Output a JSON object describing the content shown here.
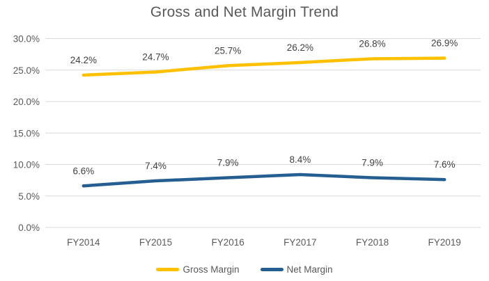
{
  "chart_data": {
    "type": "line",
    "title": "Gross and Net Margin Trend",
    "categories": [
      "FY2014",
      "FY2015",
      "FY2016",
      "FY2017",
      "FY2018",
      "FY2019"
    ],
    "series": [
      {
        "name": "Gross Margin",
        "color": "#FFC000",
        "values": [
          24.2,
          24.7,
          25.7,
          26.2,
          26.8,
          26.9
        ],
        "labels": [
          "24.2%",
          "24.7%",
          "25.7%",
          "26.2%",
          "26.8%",
          "26.9%"
        ]
      },
      {
        "name": "Net Margin",
        "color": "#255E91",
        "values": [
          6.6,
          7.4,
          7.9,
          8.4,
          7.9,
          7.6
        ],
        "labels": [
          "6.6%",
          "7.4%",
          "7.9%",
          "8.4%",
          "7.9%",
          "7.6%"
        ]
      }
    ],
    "y_axis": {
      "min": 0,
      "max": 30,
      "step": 5,
      "tick_labels": [
        "0.0%",
        "5.0%",
        "10.0%",
        "15.0%",
        "20.0%",
        "25.0%",
        "30.0%"
      ]
    },
    "x_axis": {
      "label": ""
    },
    "grid": true,
    "legend_position": "bottom",
    "colors": {
      "grid": "#D9D9D9",
      "axis_text": "#595959",
      "data_label_text": "#404040",
      "title_text": "#595959",
      "background": "#FFFFFF"
    }
  }
}
